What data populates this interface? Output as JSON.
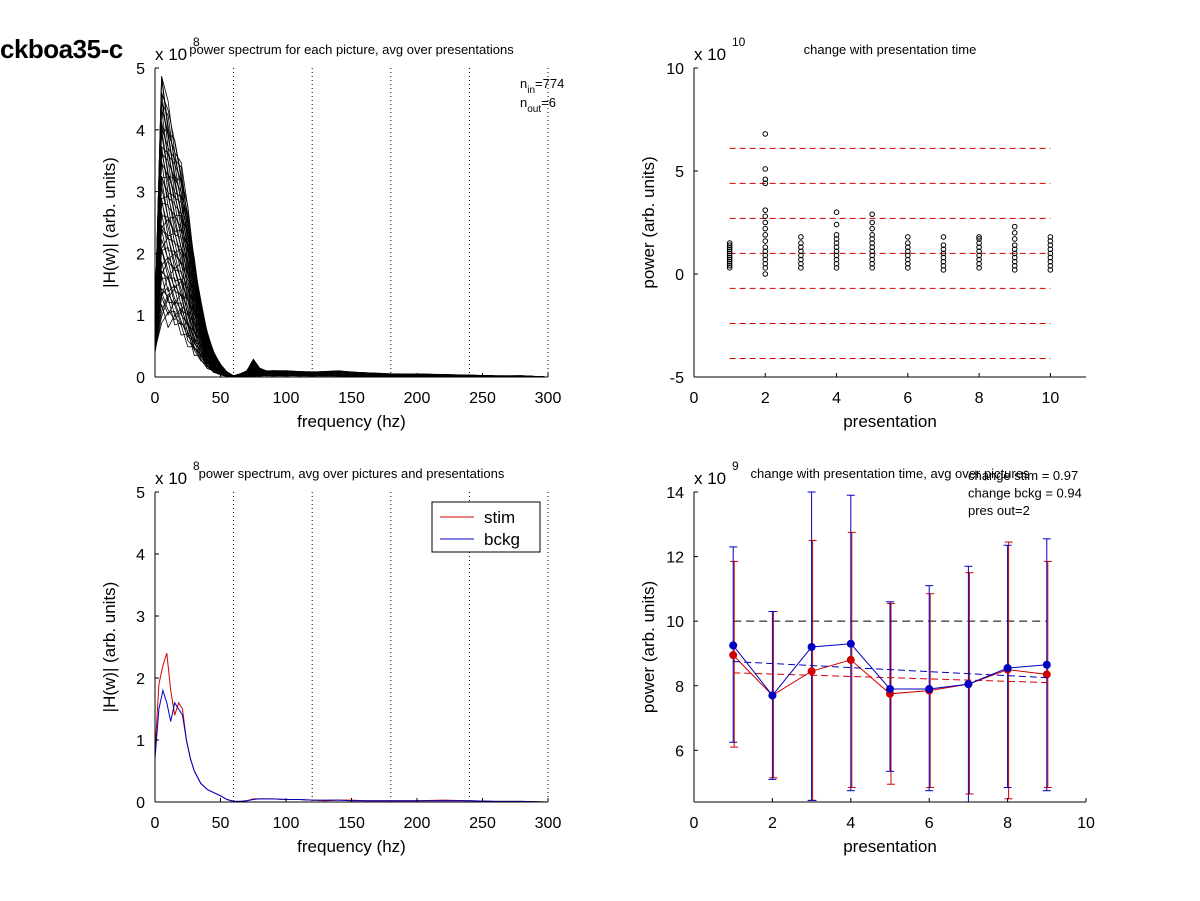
{
  "figure_title": "ckboa35-c",
  "chart_data": [
    {
      "id": "p1",
      "type": "line",
      "title": "power spectrum for each picture, avg over presentations",
      "xlabel": "frequency (hz)",
      "ylabel": "|H(w)| (arb. units)",
      "multiplier": "x 10",
      "exponent": "8",
      "xlim": [
        0,
        300
      ],
      "ylim": [
        0,
        5
      ],
      "xticks": [
        "0",
        "50",
        "100",
        "150",
        "200",
        "250",
        "300"
      ],
      "yticks": [
        "0",
        "1",
        "2",
        "3",
        "4",
        "5"
      ],
      "vlines": [
        60,
        120,
        180,
        240,
        300
      ],
      "annotation": {
        "n_in_label": "n",
        "n_in_sub": "in",
        "n_in_value": "=774",
        "n_out_label": "n",
        "n_out_sub": "out",
        "n_out_value": "=6"
      },
      "series_shape": {
        "x": [
          0,
          5,
          10,
          15,
          20,
          25,
          30,
          35,
          40,
          45,
          50,
          55,
          60,
          65,
          70,
          75,
          80,
          85,
          90,
          100,
          110,
          120,
          130,
          140,
          150,
          160,
          170,
          180,
          200,
          220,
          240,
          260,
          280,
          300
        ],
        "y": [
          1.5,
          2.6,
          2.5,
          2.1,
          1.8,
          1.3,
          0.9,
          0.6,
          0.35,
          0.2,
          0.1,
          0.04,
          0.0,
          0.02,
          0.05,
          0.06,
          0.07,
          0.06,
          0.05,
          0.05,
          0.05,
          0.04,
          0.05,
          0.05,
          0.04,
          0.04,
          0.03,
          0.03,
          0.03,
          0.02,
          0.02,
          0.01,
          0.01,
          0.0
        ]
      },
      "envelope_max": [
        1.0,
        4.9,
        4.3,
        3.8,
        3.4,
        2.7,
        1.9,
        1.2,
        0.7,
        0.4,
        0.2,
        0.08,
        0.02,
        0.05,
        0.1,
        0.28,
        0.14,
        0.1,
        0.1,
        0.1,
        0.09,
        0.08,
        0.09,
        0.1,
        0.08,
        0.07,
        0.06,
        0.05,
        0.05,
        0.04,
        0.03,
        0.02,
        0.02,
        0.0
      ],
      "envelope_min": [
        0.4,
        1.0,
        1.0,
        0.9,
        0.8,
        0.6,
        0.4,
        0.3,
        0.15,
        0.08,
        0.04,
        0.01,
        0.0,
        0.0,
        0.01,
        0.02,
        0.02,
        0.02,
        0.02,
        0.02,
        0.02,
        0.02,
        0.02,
        0.02,
        0.01,
        0.01,
        0.01,
        0.01,
        0.01,
        0.01,
        0.0,
        0.0,
        0.0,
        0.0
      ]
    },
    {
      "id": "p2",
      "type": "scatter",
      "title": "change with presentation time",
      "xlabel": "presentation",
      "ylabel": "power (arb. units)",
      "multiplier": "x 10",
      "exponent": "10",
      "xlim": [
        0,
        11
      ],
      "ylim": [
        -5,
        10
      ],
      "xticks": [
        "0",
        "2",
        "4",
        "6",
        "8",
        "10"
      ],
      "yticks": [
        "-5",
        "0",
        "5",
        "10"
      ],
      "hlines": [
        6.1,
        4.4,
        2.7,
        1.0,
        -0.7,
        -2.4,
        -4.1
      ],
      "points": [
        {
          "x": 1,
          "y": [
            0.3,
            0.4,
            0.5,
            0.6,
            0.7,
            0.8,
            0.9,
            1.0,
            1.1,
            1.2,
            1.3,
            1.4,
            1.5
          ]
        },
        {
          "x": 2,
          "y": [
            0.0,
            0.3,
            0.5,
            0.7,
            0.9,
            1.1,
            1.3,
            1.6,
            1.9,
            2.2,
            2.5,
            2.8,
            3.1,
            4.4,
            4.6,
            5.1,
            6.8
          ]
        },
        {
          "x": 3,
          "y": [
            0.3,
            0.5,
            0.7,
            0.9,
            1.1,
            1.3,
            1.5,
            1.8
          ]
        },
        {
          "x": 4,
          "y": [
            0.3,
            0.5,
            0.7,
            0.9,
            1.1,
            1.3,
            1.5,
            1.7,
            1.9,
            2.4,
            3.0
          ]
        },
        {
          "x": 5,
          "y": [
            0.3,
            0.5,
            0.7,
            0.9,
            1.1,
            1.3,
            1.5,
            1.7,
            1.9,
            2.2,
            2.5,
            2.9
          ]
        },
        {
          "x": 6,
          "y": [
            0.3,
            0.5,
            0.7,
            0.9,
            1.1,
            1.3,
            1.5,
            1.8
          ]
        },
        {
          "x": 7,
          "y": [
            0.2,
            0.4,
            0.6,
            0.8,
            1.0,
            1.2,
            1.4,
            1.8
          ]
        },
        {
          "x": 8,
          "y": [
            0.3,
            0.5,
            0.7,
            0.9,
            1.1,
            1.3,
            1.5,
            1.7,
            1.8
          ]
        },
        {
          "x": 9,
          "y": [
            0.2,
            0.4,
            0.6,
            0.8,
            1.0,
            1.2,
            1.4,
            1.7,
            2.0,
            2.3
          ]
        },
        {
          "x": 10,
          "y": [
            0.2,
            0.4,
            0.6,
            0.8,
            1.0,
            1.2,
            1.4,
            1.6,
            1.8
          ]
        }
      ]
    },
    {
      "id": "p3",
      "type": "line",
      "title": "power spectrum, avg over pictures and presentations",
      "xlabel": "frequency (hz)",
      "ylabel": "|H(w)| (arb. units)",
      "multiplier": "x 10",
      "exponent": "8",
      "xlim": [
        0,
        300
      ],
      "ylim": [
        0,
        5
      ],
      "xticks": [
        "0",
        "50",
        "100",
        "150",
        "200",
        "250",
        "300"
      ],
      "yticks": [
        "0",
        "1",
        "2",
        "3",
        "4",
        "5"
      ],
      "vlines": [
        60,
        120,
        180,
        240,
        300
      ],
      "legend": "top-right",
      "series": [
        {
          "name": "stim",
          "color": "#d00000",
          "x": [
            0,
            3,
            6,
            9,
            12,
            15,
            18,
            21,
            24,
            27,
            30,
            35,
            40,
            45,
            50,
            55,
            60,
            65,
            70,
            75,
            80,
            90,
            100,
            110,
            120,
            130,
            140,
            150,
            160,
            180,
            200,
            220,
            240,
            260,
            280,
            300
          ],
          "y": [
            0.8,
            1.9,
            2.2,
            2.4,
            1.8,
            1.4,
            1.6,
            1.5,
            1.0,
            0.7,
            0.5,
            0.3,
            0.2,
            0.15,
            0.1,
            0.04,
            0.01,
            0.01,
            0.02,
            0.05,
            0.05,
            0.05,
            0.04,
            0.04,
            0.03,
            0.02,
            0.03,
            0.03,
            0.02,
            0.02,
            0.02,
            0.03,
            0.02,
            0.01,
            0.01,
            0.0
          ]
        },
        {
          "name": "bckg",
          "color": "#0000c0",
          "x": [
            0,
            3,
            6,
            9,
            12,
            15,
            18,
            21,
            24,
            27,
            30,
            35,
            40,
            45,
            50,
            55,
            60,
            65,
            70,
            75,
            80,
            90,
            100,
            110,
            120,
            130,
            140,
            150,
            160,
            180,
            200,
            220,
            240,
            260,
            280,
            300
          ],
          "y": [
            0.7,
            1.5,
            1.8,
            1.6,
            1.3,
            1.6,
            1.5,
            1.4,
            1.0,
            0.7,
            0.5,
            0.3,
            0.2,
            0.15,
            0.1,
            0.04,
            0.01,
            0.01,
            0.02,
            0.04,
            0.05,
            0.05,
            0.04,
            0.04,
            0.03,
            0.03,
            0.03,
            0.02,
            0.02,
            0.02,
            0.02,
            0.02,
            0.02,
            0.01,
            0.01,
            0.0
          ]
        }
      ]
    },
    {
      "id": "p4",
      "type": "line",
      "title": "change with presentation time, avg over pictures",
      "xlabel": "presentation",
      "ylabel": "power (arb. units)",
      "multiplier": "x 10",
      "exponent": "9",
      "xlim": [
        0,
        10
      ],
      "ylim": [
        4.4,
        14
      ],
      "xticks": [
        "0",
        "2",
        "4",
        "6",
        "8",
        "10"
      ],
      "yticks": [
        "6",
        "8",
        "10",
        "12",
        "14"
      ],
      "hline": 10,
      "annotations": [
        "change stim = 0.97",
        "change bckg = 0.94",
        "pres out=2"
      ],
      "series": [
        {
          "name": "stim",
          "color": "#d00000",
          "x": [
            1,
            2,
            3,
            4,
            5,
            6,
            7,
            8,
            9
          ],
          "y": [
            8.95,
            7.7,
            8.45,
            8.8,
            7.75,
            7.85,
            8.05,
            8.5,
            8.35
          ],
          "err_hi": [
            11.85,
            10.3,
            12.5,
            12.75,
            10.55,
            10.85,
            11.5,
            12.45,
            11.85
          ],
          "err_lo": [
            6.1,
            5.15,
            4.45,
            4.85,
            4.95,
            4.85,
            4.65,
            4.5,
            4.85
          ],
          "trend": [
            8.4,
            8.1
          ]
        },
        {
          "name": "bckg",
          "color": "#0000c0",
          "x": [
            1,
            2,
            3,
            4,
            5,
            6,
            7,
            8,
            9
          ],
          "y": [
            9.25,
            7.7,
            9.2,
            9.3,
            7.9,
            7.9,
            8.05,
            8.55,
            8.65
          ],
          "err_hi": [
            12.3,
            10.3,
            14.0,
            13.9,
            10.6,
            11.1,
            11.7,
            12.35,
            12.55
          ],
          "err_lo": [
            6.25,
            5.1,
            4.45,
            4.75,
            5.35,
            4.75,
            4.4,
            4.85,
            4.75
          ],
          "trend": [
            8.75,
            8.25
          ]
        }
      ]
    }
  ]
}
